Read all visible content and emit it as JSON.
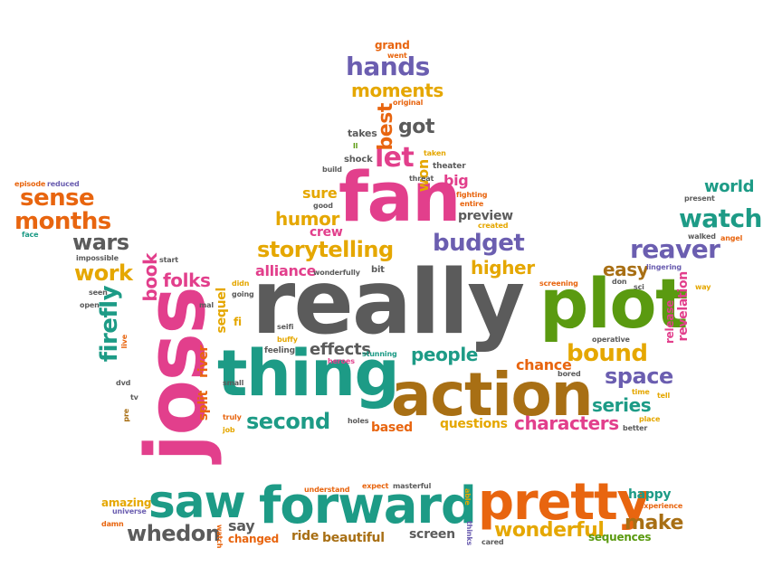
{
  "palette": {
    "orange": "#e8650f",
    "purple": "#6b5eb0",
    "yellow": "#e5a700",
    "pink": "#e23f8c",
    "teal": "#1d9b86",
    "green": "#5a9a10",
    "gray": "#5b5b5b",
    "brown": "#a86f14"
  },
  "words": {
    "really": "really",
    "plot": "plot",
    "joss": "joss",
    "fan": "fan",
    "thing": "thing",
    "action": "action",
    "forward": "forward",
    "pretty": "pretty",
    "saw": "saw",
    "storytelling": "storytelling",
    "bound": "bound",
    "watch": "watch",
    "reaver": "reaver",
    "hands": "hands",
    "sense": "sense",
    "months": "months",
    "budget": "budget",
    "wars": "wars",
    "work": "work",
    "firefly": "firefly",
    "space": "space",
    "series": "series",
    "second": "second",
    "characters": "characters",
    "whedon": "whedon",
    "wonderful": "wonderful",
    "make": "make",
    "let": "let",
    "moments": "moments",
    "best": "best",
    "got": "got",
    "humor": "humor",
    "higher": "higher",
    "people": "people",
    "effects": "effects",
    "chance": "chance",
    "easy": "easy",
    "folks": "folks",
    "book": "book",
    "alliance": "alliance",
    "world": "world",
    "crew": "crew",
    "sure": "sure",
    "preview": "preview",
    "big": "big",
    "won": "won",
    "based": "based",
    "questions": "questions",
    "screen": "screen",
    "ride": "ride",
    "beautiful": "beautiful",
    "say": "say",
    "changed": "changed",
    "sequences": "sequences",
    "happy": "happy",
    "amazing": "amazing",
    "river": "river",
    "split": "split",
    "sequel": "sequel",
    "revelation": "revelation",
    "release": "release",
    "fi": "fi",
    "grand": "grand",
    "went": "went",
    "original": "original",
    "takes": "takes",
    "shock": "shock",
    "build": "build",
    "threat": "threat",
    "taken": "taken",
    "theater": "theater",
    "fighting": "fighting",
    "entire": "entire",
    "created": "created",
    "good": "good",
    "bit": "bit",
    "wonderfully": "wonderfully",
    "episode": "episode",
    "reduced": "reduced",
    "face": "face",
    "impossible": "impossible",
    "start": "start",
    "seen": "seen",
    "open": "open",
    "mal": "mal",
    "didn": "didn",
    "going": "going",
    "seifi": "seifi",
    "buffy": "buffy",
    "feeling": "feeling",
    "heroes": "heroes",
    "stunning": "stunning",
    "live": "live",
    "dvd": "dvd",
    "tv": "tv",
    "pre": "pre",
    "small": "small",
    "truly": "truly",
    "job": "job",
    "holes": "holes",
    "screening": "screening",
    "don": "don",
    "sci": "sci",
    "operative": "operative",
    "bored": "bored",
    "time": "time",
    "tell": "tell",
    "place": "place",
    "better": "better",
    "present": "present",
    "walked": "walked",
    "angel": "angel",
    "lingering": "lingering",
    "way": "way",
    "understand": "understand",
    "expect": "expect",
    "masterful": "masterful",
    "able": "able",
    "thinks": "thinks",
    "cared": "cared",
    "universe": "universe",
    "damn": "damn",
    "watch_small": "watch",
    "experience": "experience",
    "ll": "ll"
  }
}
